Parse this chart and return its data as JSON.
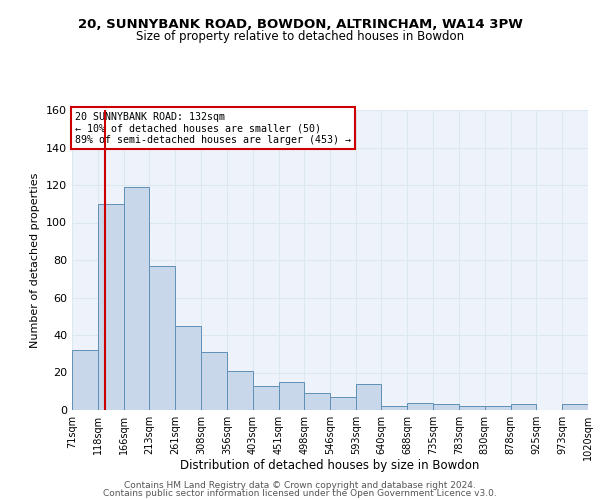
{
  "title1": "20, SUNNYBANK ROAD, BOWDON, ALTRINCHAM, WA14 3PW",
  "title2": "Size of property relative to detached houses in Bowdon",
  "xlabel": "Distribution of detached houses by size in Bowdon",
  "ylabel": "Number of detached properties",
  "bin_labels": [
    "71sqm",
    "118sqm",
    "166sqm",
    "213sqm",
    "261sqm",
    "308sqm",
    "356sqm",
    "403sqm",
    "451sqm",
    "498sqm",
    "546sqm",
    "593sqm",
    "640sqm",
    "688sqm",
    "735sqm",
    "783sqm",
    "830sqm",
    "878sqm",
    "925sqm",
    "973sqm",
    "1020sqm"
  ],
  "heights": [
    32,
    110,
    119,
    77,
    45,
    31,
    21,
    13,
    15,
    9,
    7,
    14,
    2,
    4,
    3,
    2,
    2,
    3,
    0,
    3
  ],
  "bin_edges": [
    71,
    118,
    166,
    213,
    261,
    308,
    356,
    403,
    451,
    498,
    546,
    593,
    640,
    688,
    735,
    783,
    830,
    878,
    925,
    973,
    1020
  ],
  "bar_color": "#c8d8ea",
  "bar_edge_color": "#6090b8",
  "grid_color": "#dce8f0",
  "bg_color": "#eef2fa",
  "vline_x": 132,
  "vline_color": "#cc0000",
  "annotation_text": "20 SUNNYBANK ROAD: 132sqm\n← 10% of detached houses are smaller (50)\n89% of semi-detached houses are larger (453) →",
  "annotation_box_color": "#ffffff",
  "annotation_border_color": "#cc0000",
  "ylim": [
    0,
    160
  ],
  "yticks": [
    0,
    20,
    40,
    60,
    80,
    100,
    120,
    140,
    160
  ],
  "footer1": "Contains HM Land Registry data © Crown copyright and database right 2024.",
  "footer2": "Contains public sector information licensed under the Open Government Licence v3.0."
}
